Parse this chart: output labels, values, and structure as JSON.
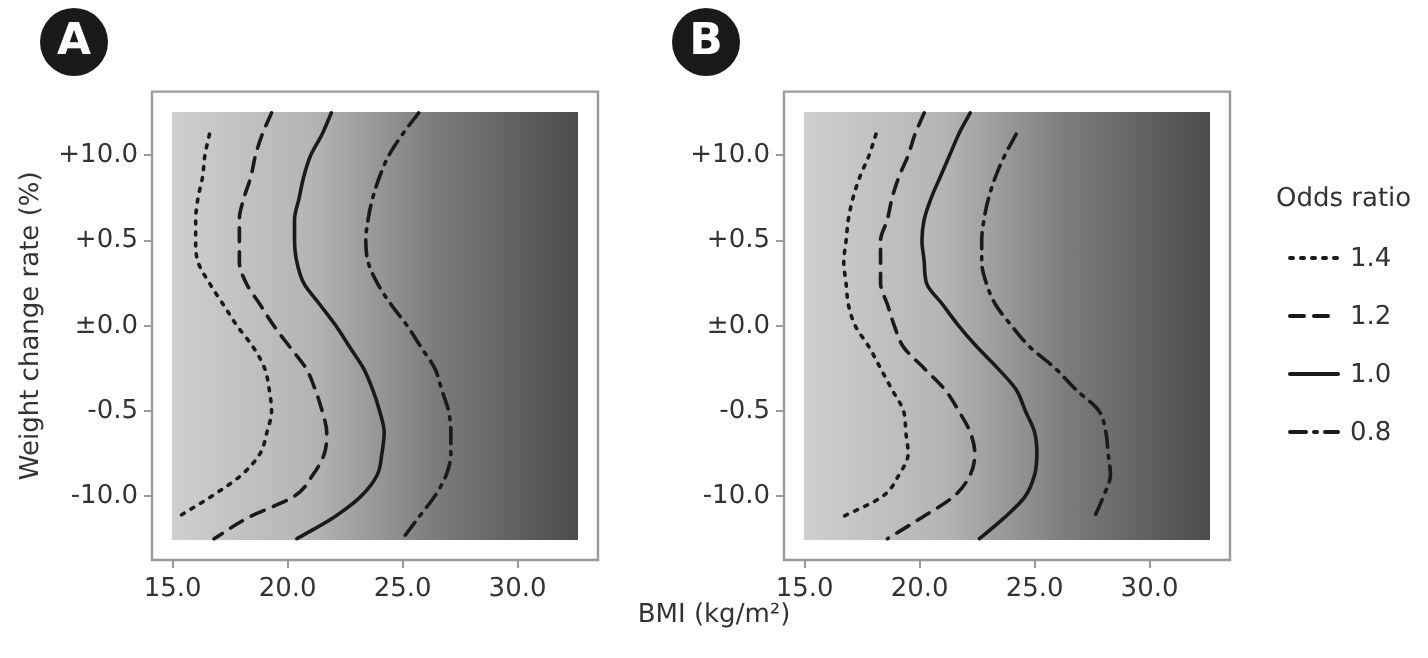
{
  "chart_data": [
    {
      "type": "line",
      "orientation": "horizontal",
      "title": "A",
      "xlabel": "BMI (kg/m²)",
      "ylabel": "Weight change rate (%)",
      "legend": "right",
      "legend_title": "Odds ratio",
      "grid": false,
      "marker": "none",
      "xlim": [
        14.1,
        33.5
      ],
      "xticks": [
        {
          "value": 15,
          "label": "15.0"
        },
        {
          "value": 20,
          "label": "20.0"
        },
        {
          "value": 25,
          "label": "25.0"
        },
        {
          "value": 30,
          "label": "30.0"
        }
      ],
      "categories": [
        null,
        null,
        null,
        "+10.0",
        null,
        null,
        null,
        "+0.5",
        null,
        null,
        null,
        "±0.0",
        null,
        null,
        null,
        "-0.5",
        null,
        null,
        null,
        "-10.0",
        null,
        null,
        null
      ],
      "series": [
        {
          "name": "1.4",
          "color": "#1a1a1a",
          "line_style": "dotted",
          "values": [
            null,
            null,
            16.6,
            16.4,
            16.3,
            16.1,
            16.0,
            16.0,
            16.1,
            16.6,
            17.2,
            17.8,
            18.5,
            19.0,
            19.2,
            19.3,
            19.1,
            18.8,
            18.0,
            16.7,
            15.2,
            null,
            null
          ]
        },
        {
          "name": "1.2",
          "color": "#1a1a1a",
          "line_style": "dashed",
          "values": [
            null,
            19.3,
            18.9,
            18.6,
            18.4,
            18.1,
            17.9,
            17.9,
            17.9,
            18.2,
            18.8,
            19.4,
            20.1,
            20.8,
            21.2,
            21.5,
            21.7,
            21.6,
            21.1,
            20.3,
            18.3,
            16.8,
            null
          ]
        },
        {
          "name": "1.0",
          "color": "#1a1a1a",
          "line_style": "solid",
          "values": [
            null,
            21.9,
            21.5,
            21.0,
            20.7,
            20.5,
            20.3,
            20.3,
            20.4,
            20.7,
            21.4,
            22.1,
            22.7,
            23.3,
            23.7,
            24.0,
            24.2,
            24.1,
            23.9,
            23.2,
            22.0,
            20.4,
            null
          ]
        },
        {
          "name": "0.8",
          "color": "#1a1a1a",
          "line_style": "dashdot",
          "values": [
            null,
            25.7,
            25.0,
            24.4,
            24.0,
            23.7,
            23.5,
            23.4,
            23.5,
            23.9,
            24.5,
            25.2,
            25.8,
            26.4,
            26.7,
            27.0,
            27.1,
            27.1,
            26.9,
            26.4,
            25.7,
            25.0,
            null
          ]
        }
      ]
    },
    {
      "type": "line",
      "orientation": "horizontal",
      "title": "B",
      "grid": false,
      "marker": "none",
      "xlim": [
        14.1,
        33.5
      ],
      "xticks": [
        {
          "value": 15,
          "label": "15.0"
        },
        {
          "value": 20,
          "label": "20.0"
        },
        {
          "value": 25,
          "label": "25.0"
        },
        {
          "value": 30,
          "label": "30.0"
        }
      ],
      "categories": [
        null,
        null,
        null,
        "+10.0",
        null,
        null,
        null,
        "+0.5",
        null,
        null,
        null,
        "±0.0",
        null,
        null,
        null,
        "-0.5",
        null,
        null,
        null,
        "-10.0",
        null,
        null,
        null
      ],
      "series": [
        {
          "name": "1.4",
          "color": "#1a1a1a",
          "line_style": "dotted",
          "values": [
            null,
            null,
            18.1,
            17.8,
            17.4,
            17.1,
            16.9,
            16.8,
            16.7,
            16.8,
            16.9,
            17.2,
            17.8,
            18.3,
            18.8,
            19.3,
            19.4,
            19.5,
            19.1,
            18.4,
            16.6,
            null,
            null
          ]
        },
        {
          "name": "1.2",
          "color": "#1a1a1a",
          "line_style": "dashed",
          "values": [
            null,
            20.2,
            19.8,
            19.5,
            19.1,
            18.8,
            18.6,
            18.3,
            18.3,
            18.3,
            18.6,
            18.9,
            19.3,
            20.2,
            21.1,
            21.7,
            22.2,
            22.4,
            22.2,
            21.5,
            20.1,
            18.6,
            null
          ]
        },
        {
          "name": "1.0",
          "color": "#1a1a1a",
          "line_style": "solid",
          "values": [
            null,
            22.2,
            21.7,
            21.3,
            20.9,
            20.5,
            20.2,
            20.1,
            20.2,
            20.3,
            21.0,
            21.7,
            22.5,
            23.4,
            24.2,
            24.6,
            25.0,
            25.1,
            25.0,
            24.6,
            23.7,
            22.6,
            null
          ]
        },
        {
          "name": "0.8",
          "color": "#1a1a1a",
          "line_style": "dashdot",
          "values": [
            null,
            null,
            24.2,
            23.7,
            23.3,
            23.0,
            22.8,
            22.7,
            22.7,
            22.9,
            23.3,
            24.0,
            24.8,
            25.9,
            26.8,
            27.8,
            28.1,
            28.2,
            28.3,
            28.0,
            27.6,
            null,
            null
          ]
        }
      ]
    }
  ]
}
